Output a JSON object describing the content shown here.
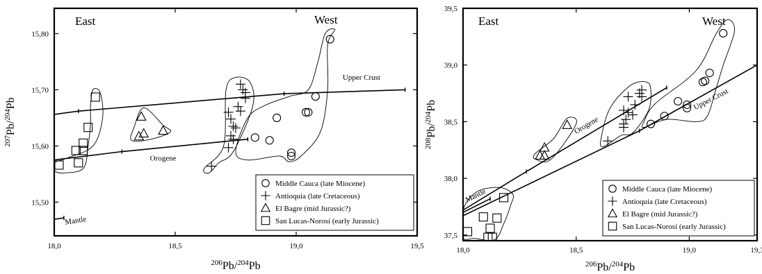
{
  "chart_data": [
    {
      "type": "scatter",
      "xlabel": {
        "pre": "206",
        "mid": "Pb/",
        "sup": "204",
        "post": "Pb"
      },
      "ylabel": {
        "pre": "207",
        "mid": "Pb/",
        "sup": "204",
        "post": "Pb"
      },
      "xlim": [
        18.0,
        19.5
      ],
      "ylim": [
        15.44,
        15.845
      ],
      "xticks": [
        18.0,
        18.5,
        19.0,
        19.5
      ],
      "xtick_labels": [
        "18,0",
        "18,5",
        "19,0",
        "19,5"
      ],
      "yticks": [
        15.5,
        15.6,
        15.7,
        15.8
      ],
      "ytick_labels": [
        "15,50",
        "15,60",
        "15,70",
        "15,80"
      ],
      "annotations": {
        "east": "East",
        "west": "West"
      },
      "reference_lines": [
        {
          "name": "Upper Crust",
          "points": [
            [
              17.98,
              15.655
            ],
            [
              18.1,
              15.662
            ],
            [
              18.95,
              15.693
            ],
            [
              19.45,
              15.7
            ]
          ],
          "label_at": [
            19.27,
            15.718
          ]
        },
        {
          "name": "Orogene",
          "points": [
            [
              17.98,
              15.574
            ],
            [
              18.28,
              15.59
            ],
            [
              18.8,
              15.612
            ]
          ],
          "label_at": [
            18.45,
            15.574
          ]
        },
        {
          "name": "Mantle",
          "points": [
            [
              17.98,
              15.468
            ],
            [
              18.04,
              15.472
            ]
          ],
          "label_at": [
            18.09,
            15.463
          ]
        }
      ],
      "series": [
        {
          "name": "Middle Cauca (late Miocene)",
          "symbol": "circle",
          "points": [
            [
              19.14,
              15.79
            ],
            [
              19.08,
              15.688
            ],
            [
              19.04,
              15.66
            ],
            [
              19.05,
              15.66
            ],
            [
              18.92,
              15.65
            ],
            [
              18.83,
              15.615
            ],
            [
              18.89,
              15.61
            ],
            [
              18.98,
              15.588
            ],
            [
              18.98,
              15.582
            ]
          ],
          "envelope": [
            [
              18.75,
              15.59
            ],
            [
              18.8,
              15.575
            ],
            [
              18.93,
              15.582
            ],
            [
              18.97,
              15.572
            ],
            [
              19.02,
              15.582
            ],
            [
              19.1,
              15.625
            ],
            [
              19.13,
              15.7
            ],
            [
              19.13,
              15.78
            ],
            [
              19.16,
              15.807
            ],
            [
              19.12,
              15.8
            ],
            [
              19.09,
              15.75
            ],
            [
              19.05,
              15.7
            ],
            [
              18.97,
              15.688
            ],
            [
              18.87,
              15.672
            ],
            [
              18.8,
              15.65
            ]
          ]
        },
        {
          "name": "Antioquia (late Cretaceous)",
          "symbol": "plus",
          "points": [
            [
              18.77,
              15.71
            ],
            [
              18.78,
              15.7
            ],
            [
              18.79,
              15.695
            ],
            [
              18.79,
              15.685
            ],
            [
              18.72,
              15.66
            ],
            [
              18.76,
              15.67
            ],
            [
              18.77,
              15.662
            ],
            [
              18.73,
              15.648
            ],
            [
              18.74,
              15.635
            ],
            [
              18.75,
              15.632
            ],
            [
              18.73,
              15.618
            ],
            [
              18.74,
              15.612
            ],
            [
              18.72,
              15.597
            ],
            [
              18.65,
              15.564
            ]
          ],
          "envelope": [
            [
              18.64,
              15.552
            ],
            [
              18.68,
              15.57
            ],
            [
              18.74,
              15.59
            ],
            [
              18.82,
              15.67
            ],
            [
              18.81,
              15.713
            ],
            [
              18.75,
              15.722
            ],
            [
              18.71,
              15.7
            ],
            [
              18.7,
              15.6
            ],
            [
              18.62,
              15.56
            ]
          ]
        },
        {
          "name": "El Bagre (mid Jurassic?)",
          "symbol": "triangle",
          "points": [
            [
              18.36,
              15.652
            ],
            [
              18.35,
              15.617
            ],
            [
              18.37,
              15.622
            ],
            [
              18.45,
              15.627
            ]
          ],
          "envelope": [
            [
              18.32,
              15.61
            ],
            [
              18.4,
              15.612
            ],
            [
              18.48,
              15.625
            ],
            [
              18.45,
              15.637
            ],
            [
              18.37,
              15.668
            ],
            [
              18.33,
              15.633
            ]
          ]
        },
        {
          "name": "San Lucas-Norosí (early Jurassic)",
          "symbol": "square",
          "points": [
            [
              18.17,
              15.687
            ],
            [
              18.14,
              15.633
            ],
            [
              18.12,
              15.605
            ],
            [
              18.09,
              15.592
            ],
            [
              18.12,
              15.592
            ],
            [
              18.1,
              15.57
            ],
            [
              18.02,
              15.566
            ]
          ],
          "envelope": [
            [
              18.0,
              15.556
            ],
            [
              18.04,
              15.552
            ],
            [
              18.12,
              15.56
            ],
            [
              18.14,
              15.6
            ],
            [
              18.15,
              15.64
            ],
            [
              18.15,
              15.672
            ],
            [
              18.16,
              15.7
            ],
            [
              18.19,
              15.695
            ],
            [
              18.2,
              15.65
            ],
            [
              18.16,
              15.6
            ],
            [
              18.05,
              15.578
            ],
            [
              18.0,
              15.57
            ]
          ]
        }
      ],
      "legend_position": "bottom-right"
    },
    {
      "type": "scatter",
      "xlabel": {
        "pre": "206",
        "mid": "Pb/",
        "sup": "204",
        "post": "Pb"
      },
      "ylabel": {
        "pre": "208",
        "mid": "Pb/",
        "sup": "204",
        "post": "Pb"
      },
      "xlim": [
        18.0,
        19.3
      ],
      "ylim": [
        37.45,
        39.5
      ],
      "xticks": [
        18.0,
        18.5,
        19.0,
        19.3
      ],
      "xtick_labels": [
        "18,0",
        "18,5",
        "19,0",
        "19,3"
      ],
      "yticks": [
        37.5,
        38.0,
        38.5,
        39.0,
        39.5
      ],
      "ytick_labels": [
        "37,5",
        "38,0",
        "38,5",
        "39,0",
        "39,5"
      ],
      "annotations": {
        "east": "East",
        "west": "West"
      },
      "reference_lines": [
        {
          "name": "Upper Crust",
          "points": [
            [
              18.0,
              37.67
            ],
            [
              18.78,
              38.42
            ],
            [
              19.3,
              39.0
            ]
          ],
          "label_at": [
            19.1,
            38.68
          ]
        },
        {
          "name": "Orogene",
          "points": [
            [
              18.0,
              37.72
            ],
            [
              18.28,
              38.06
            ],
            [
              18.9,
              38.8
            ]
          ],
          "label_at": [
            18.55,
            38.45
          ]
        },
        {
          "name": "Mantle",
          "points": [
            [
              18.0,
              37.7
            ],
            [
              18.12,
              37.82
            ]
          ],
          "label_at": [
            18.06,
            37.83
          ]
        }
      ],
      "series": [
        {
          "name": "Middle Cauca (late Miocene)",
          "symbol": "circle",
          "points": [
            [
              19.15,
              39.28
            ],
            [
              19.09,
              38.93
            ],
            [
              19.06,
              38.85
            ],
            [
              19.07,
              38.86
            ],
            [
              18.95,
              38.68
            ],
            [
              18.99,
              38.65
            ],
            [
              18.99,
              38.62
            ],
            [
              18.89,
              38.55
            ],
            [
              18.83,
              38.48
            ]
          ],
          "envelope": [
            [
              18.8,
              38.45
            ],
            [
              18.9,
              38.52
            ],
            [
              19.03,
              38.5
            ],
            [
              19.08,
              38.55
            ],
            [
              19.12,
              38.8
            ],
            [
              19.15,
              39.0
            ],
            [
              19.2,
              39.3
            ],
            [
              19.17,
              39.4
            ],
            [
              19.12,
              39.28
            ],
            [
              19.03,
              38.95
            ],
            [
              18.85,
              38.66
            ],
            [
              18.8,
              38.5
            ]
          ]
        },
        {
          "name": "Antioquia (late Cretaceous)",
          "symbol": "plus",
          "points": [
            [
              18.79,
              38.78
            ],
            [
              18.78,
              38.75
            ],
            [
              18.79,
              38.72
            ],
            [
              18.73,
              38.72
            ],
            [
              18.76,
              38.65
            ],
            [
              18.71,
              38.6
            ],
            [
              18.73,
              38.58
            ],
            [
              18.75,
              38.56
            ],
            [
              18.72,
              38.52
            ],
            [
              18.71,
              38.48
            ],
            [
              18.71,
              38.45
            ],
            [
              18.64,
              38.33
            ]
          ],
          "envelope": [
            [
              18.62,
              38.28
            ],
            [
              18.7,
              38.38
            ],
            [
              18.75,
              38.4
            ],
            [
              18.82,
              38.6
            ],
            [
              18.83,
              38.78
            ],
            [
              18.81,
              38.85
            ],
            [
              18.74,
              38.82
            ],
            [
              18.65,
              38.62
            ],
            [
              18.61,
              38.35
            ]
          ]
        },
        {
          "name": "El Bagre (mid Jurassic?)",
          "symbol": "triangle",
          "points": [
            [
              18.46,
              38.47
            ],
            [
              18.36,
              38.27
            ],
            [
              18.34,
              38.2
            ],
            [
              18.36,
              38.2
            ]
          ],
          "envelope": [
            [
              18.32,
              38.17
            ],
            [
              18.39,
              38.17
            ],
            [
              18.5,
              38.48
            ],
            [
              18.46,
              38.53
            ],
            [
              18.4,
              38.35
            ],
            [
              18.32,
              38.22
            ]
          ]
        },
        {
          "name": "San Lucas-Norosí (early Jurassic)",
          "symbol": "square",
          "points": [
            [
              18.18,
              37.83
            ],
            [
              18.09,
              37.66
            ],
            [
              18.15,
              37.65
            ],
            [
              18.12,
              37.56
            ],
            [
              18.02,
              37.53
            ],
            [
              18.11,
              37.48
            ],
            [
              18.13,
              37.48
            ]
          ],
          "envelope": [
            [
              18.0,
              37.48
            ],
            [
              18.05,
              37.47
            ],
            [
              18.14,
              37.46
            ],
            [
              18.18,
              37.6
            ],
            [
              18.21,
              37.76
            ],
            [
              18.22,
              37.86
            ],
            [
              18.16,
              37.92
            ],
            [
              18.06,
              37.88
            ],
            [
              18.0,
              37.72
            ]
          ]
        }
      ],
      "legend_position": "bottom-right"
    }
  ]
}
